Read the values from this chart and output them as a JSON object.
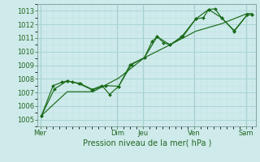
{
  "xlabel": "Pression niveau de la mer( hPa )",
  "bg_color": "#ceeaea",
  "grid_color_major": "#aad4d4",
  "grid_color_minor": "#c0e4e4",
  "line_color": "#1a6b1a",
  "ylim": [
    1004.5,
    1013.5
  ],
  "yticks": [
    1005,
    1006,
    1007,
    1008,
    1009,
    1010,
    1011,
    1012,
    1013
  ],
  "x_day_labels": [
    "Mer",
    "Dim",
    "Jeu",
    "Ven",
    "Sam"
  ],
  "x_day_positions": [
    0.0,
    3.0,
    4.0,
    6.0,
    8.0
  ],
  "xlim": [
    -0.1,
    8.4
  ],
  "line1_x": [
    0.05,
    0.5,
    0.85,
    1.05,
    1.25,
    1.5,
    2.0,
    2.4,
    2.7,
    3.05,
    3.5,
    4.05,
    4.35,
    4.55,
    4.8,
    5.05,
    5.5,
    6.05,
    6.35,
    6.55,
    6.8,
    7.05,
    7.55,
    8.05,
    8.25
  ],
  "line1_y": [
    1005.3,
    1007.5,
    1007.75,
    1007.85,
    1007.75,
    1007.65,
    1007.2,
    1007.5,
    1006.85,
    1007.45,
    1009.05,
    1009.55,
    1010.75,
    1011.1,
    1010.65,
    1010.5,
    1011.1,
    1012.4,
    1012.5,
    1013.1,
    1013.15,
    1012.5,
    1011.5,
    1012.7,
    1012.7
  ],
  "line2_x": [
    0.05,
    0.55,
    1.05,
    1.55,
    2.05,
    2.55,
    3.05,
    3.55,
    4.05,
    4.55,
    5.05,
    5.55,
    6.05,
    6.55,
    7.05,
    7.55,
    8.05,
    8.25
  ],
  "line2_y": [
    1005.3,
    1007.25,
    1007.85,
    1007.65,
    1007.2,
    1007.5,
    1007.45,
    1009.05,
    1009.55,
    1011.1,
    1010.5,
    1011.1,
    1012.4,
    1013.1,
    1012.5,
    1011.55,
    1012.7,
    1012.7
  ],
  "line3_x": [
    0.05,
    1.05,
    2.05,
    3.05,
    4.05,
    5.05,
    6.05,
    7.05,
    8.05,
    8.25
  ],
  "line3_y": [
    1005.3,
    1007.05,
    1007.05,
    1008.05,
    1009.55,
    1010.5,
    1011.5,
    1012.05,
    1012.8,
    1012.8
  ],
  "xlabel_fontsize": 7.0,
  "tick_fontsize": 6.0
}
